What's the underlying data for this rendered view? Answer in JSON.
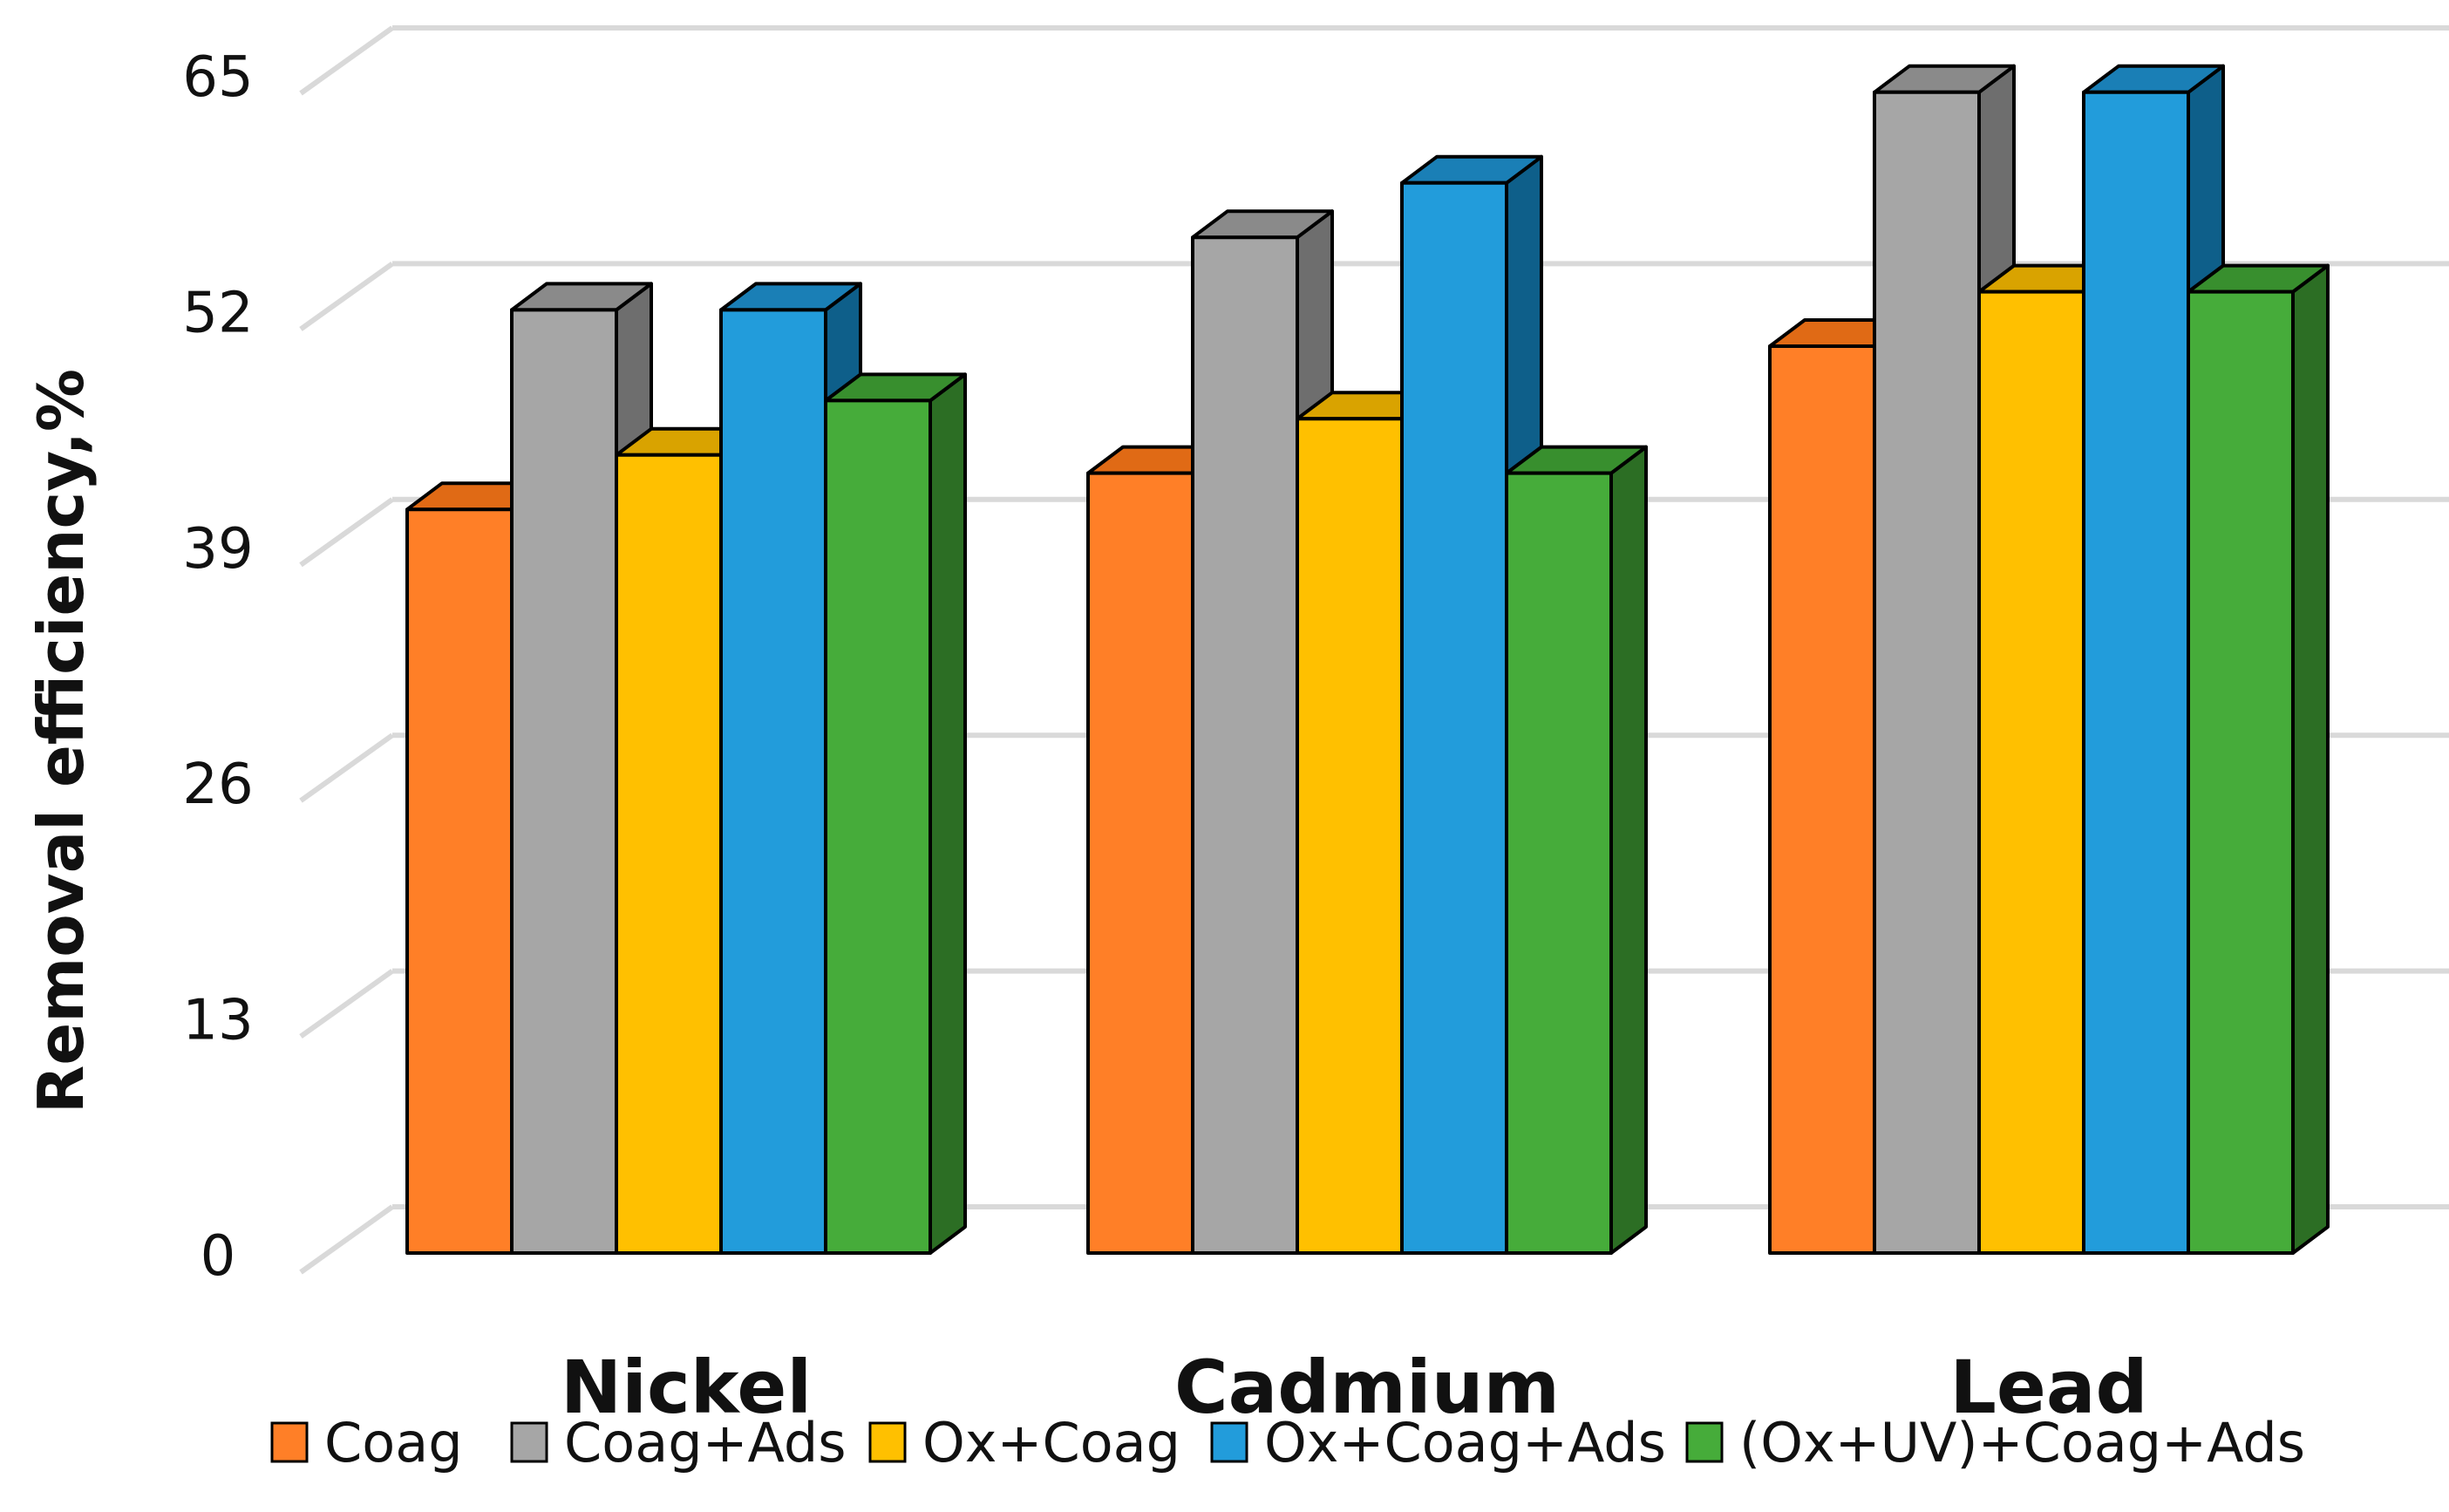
{
  "chart_data": {
    "type": "bar",
    "title": "",
    "xlabel": "",
    "ylabel": "Removal efficiency,%",
    "ylim": [
      0,
      65
    ],
    "yticks": [
      0,
      13,
      26,
      39,
      52,
      65
    ],
    "ytick_labels": [
      "0",
      "13",
      "26",
      "39",
      "52",
      "65"
    ],
    "grid": true,
    "legend_position": "bottom",
    "categories": [
      "Nickel",
      "Cadmium",
      "Lead"
    ],
    "series": [
      {
        "name": "Coag",
        "values": [
          41,
          43,
          50
        ],
        "color": "#FF7F27",
        "side": "#C55A11",
        "top": "#E06A15"
      },
      {
        "name": "Coag+Ads",
        "values": [
          52,
          56,
          64
        ],
        "color": "#A6A6A6",
        "side": "#6E6E6E",
        "top": "#8A8A8A"
      },
      {
        "name": "Ox+Coag",
        "values": [
          44,
          46,
          53
        ],
        "color": "#FFC000",
        "side": "#BF9000",
        "top": "#D9A300"
      },
      {
        "name": "Ox+Coag+Ads",
        "values": [
          52,
          59,
          64
        ],
        "color": "#229CDB",
        "side": "#0E5F8A",
        "top": "#1A7FB6"
      },
      {
        "name": "(Ox+UV)+Coag+Ads",
        "values": [
          47,
          43,
          53
        ],
        "color": "#46AC3A",
        "side": "#2C6E24",
        "top": "#388F2E"
      }
    ]
  }
}
